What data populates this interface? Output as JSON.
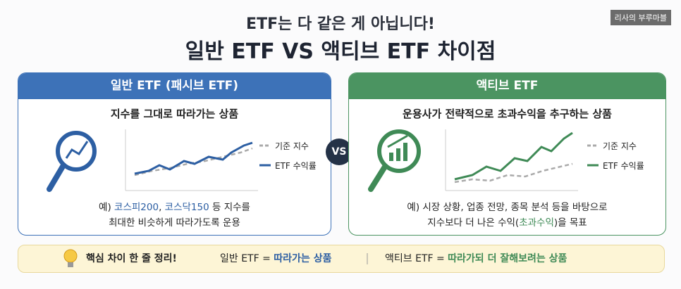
{
  "watermark": "리사의 부루마블",
  "header": {
    "title": "ETF는 다 같은 게 아닙니다!",
    "headline": "일반 ETF VS 액티브 ETF 차이점"
  },
  "vs": "VS",
  "panels": [
    {
      "title": "일반 ETF (패시브 ETF)",
      "subtitle": "지수를 그대로 따라가는 상품",
      "legend": [
        "기준 지수",
        "ETF 수익률"
      ],
      "description": [
        [
          "예) ",
          "코스피200",
          ", ",
          "코스닥150",
          " 등 지수를"
        ],
        [
          "최대한 비슷하게 따라가도록 운용"
        ]
      ]
    },
    {
      "title": "액티브 ETF",
      "subtitle": "운용사가 전략적으로 초과수익을 추구하는 상품",
      "legend": [
        "기준 지수",
        "ETF 수익률"
      ],
      "description": [
        [
          "예) 시장 상황, 업종 전망, 종목 분석 등을 바탕으로"
        ],
        [
          "지수보다 더 나은 수익(",
          "초과수익",
          ")을 목표"
        ]
      ]
    }
  ],
  "summary": {
    "label": "핵심 차이 한 줄 정리!",
    "items": [
      [
        "일반 ETF = ",
        "따라가는 상품"
      ],
      [
        "액티브 ETF = ",
        "따라가되 더 잘해보려는 상품"
      ]
    ]
  }
}
